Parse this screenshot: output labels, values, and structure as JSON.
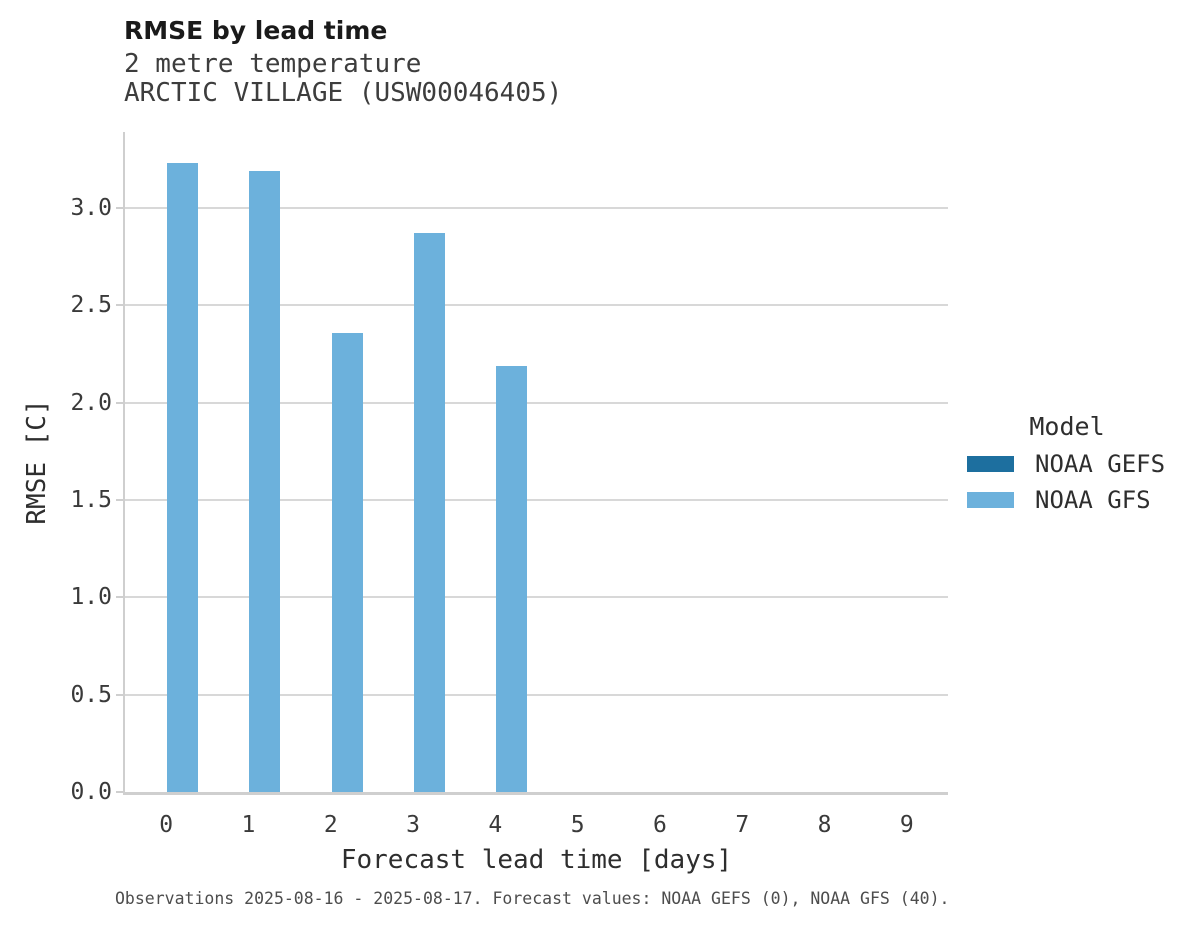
{
  "header": {
    "title": "RMSE by lead time",
    "subtitle_line1": "2 metre temperature",
    "subtitle_line2": "ARCTIC VILLAGE (USW00046405)"
  },
  "chart_data": {
    "type": "bar",
    "title": "RMSE by lead time",
    "subtitle": [
      "2 metre temperature",
      "ARCTIC VILLAGE (USW00046405)"
    ],
    "xlabel": "Forecast lead time [days]",
    "ylabel": "RMSE [C]",
    "categories": [
      0,
      1,
      2,
      3,
      4,
      5,
      6,
      7,
      8,
      9
    ],
    "series": [
      {
        "name": "NOAA GEFS",
        "color": "#1d6f9f",
        "values": [
          null,
          null,
          null,
          null,
          null,
          null,
          null,
          null,
          null,
          null
        ]
      },
      {
        "name": "NOAA GFS",
        "color": "#6cb1dc",
        "values": [
          3.23,
          3.19,
          2.36,
          2.87,
          2.19,
          null,
          null,
          null,
          null,
          null
        ]
      }
    ],
    "ylim": [
      0,
      3.39
    ],
    "yticks": [
      0.0,
      0.5,
      1.0,
      1.5,
      2.0,
      2.5,
      3.0
    ],
    "grid": "horizontal",
    "legend": {
      "title": "Model",
      "position": "right-of-plot"
    }
  },
  "legend": {
    "title": "Model",
    "entries": [
      {
        "label": "NOAA GEFS",
        "color": "#1d6f9f"
      },
      {
        "label": "NOAA GFS",
        "color": "#6cb1dc"
      }
    ]
  },
  "caption": {
    "text": "Observations 2025-08-16 - 2025-08-17. Forecast values: NOAA GEFS (0), NOAA GFS (40)."
  }
}
